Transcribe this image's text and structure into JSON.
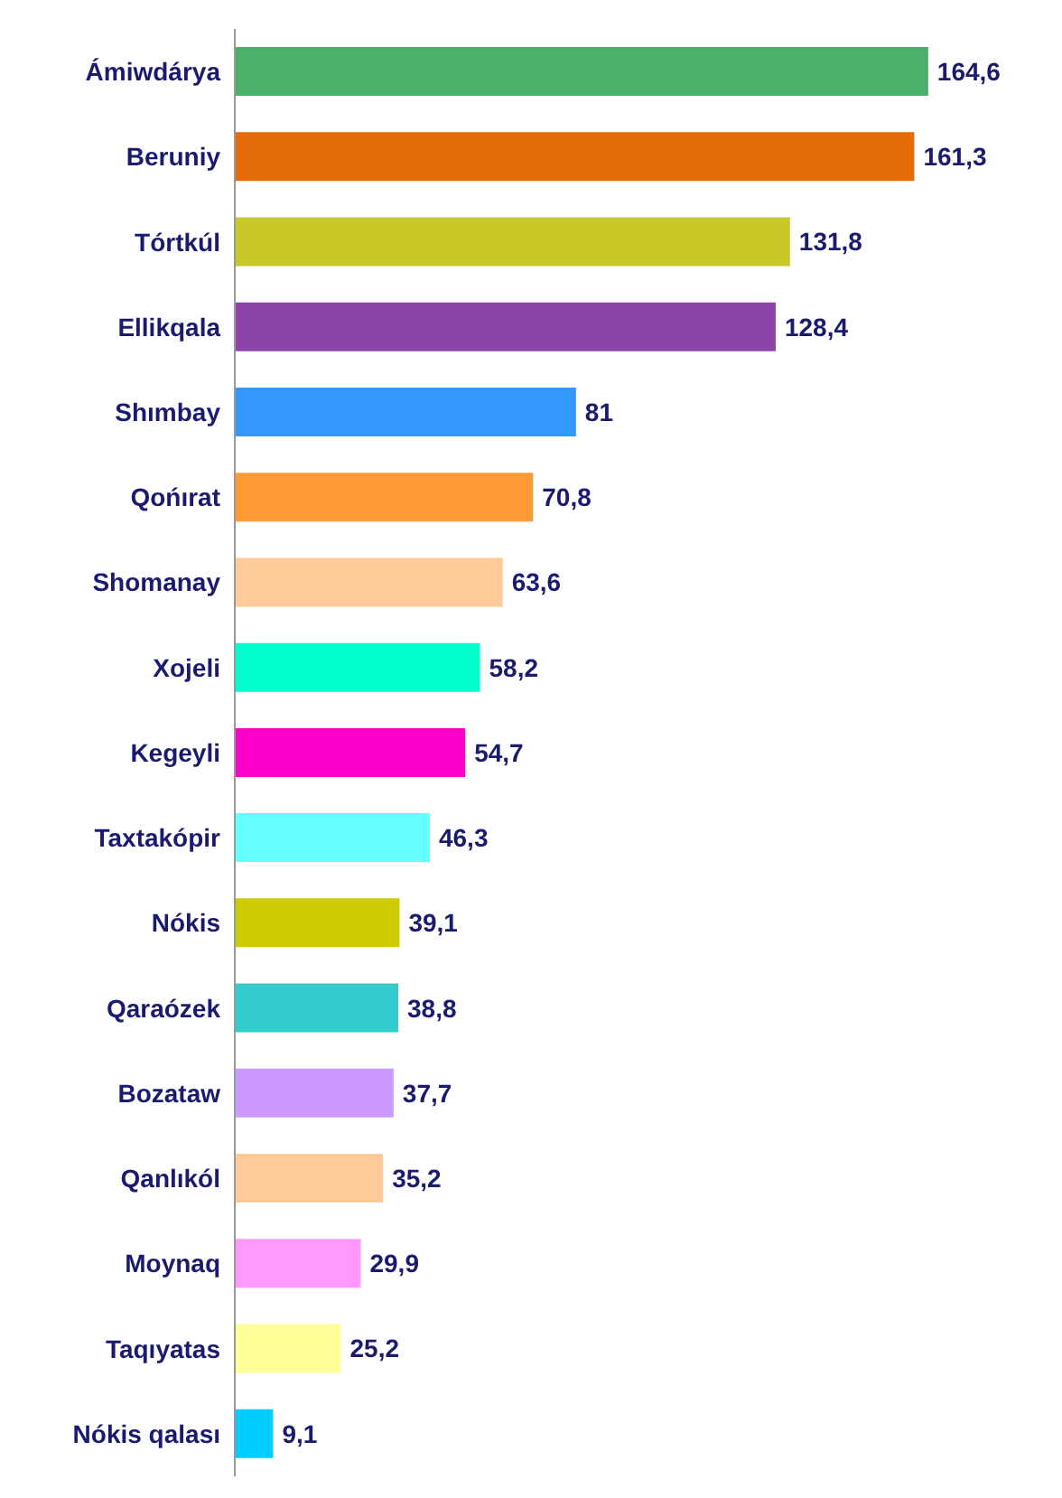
{
  "chart_data": {
    "type": "bar",
    "orientation": "horizontal",
    "value_labels": [
      "164,6",
      "161,3",
      "131,8",
      "128,4",
      "81",
      "70,8",
      "63,6",
      "58,2",
      "54,7",
      "46,3",
      "39,1",
      "38,8",
      "37,7",
      "35,2",
      "29,9",
      "25,2",
      "9,1"
    ],
    "grid": false,
    "legend": false,
    "categories": [
      "Ámiwdárya",
      "Beruniy",
      "Tórtkúl",
      "Ellikqala",
      "Shımbay",
      "Qońırat",
      "Shomanay",
      "Xojeli",
      "Kegeyli",
      "Taxtakópir",
      "Nókis",
      "Qaraózek",
      "Bozataw",
      "Qanlıkól",
      "Moynaq",
      "Taqıyatas",
      "Nókis qalası"
    ],
    "values": [
      164.6,
      161.3,
      131.8,
      128.4,
      81,
      70.8,
      63.6,
      58.2,
      54.7,
      46.3,
      39.1,
      38.8,
      37.7,
      35.2,
      29.9,
      25.2,
      9.1
    ],
    "colors": [
      "#4caf6a",
      "#e46c0a",
      "#c8c828",
      "#8c44a8",
      "#3399ff",
      "#ff9933",
      "#ffcc99",
      "#00ffcc",
      "#ff00cc",
      "#66ffff",
      "#cccc00",
      "#33cccc",
      "#cc99ff",
      "#ffcc99",
      "#ff99ff",
      "#ffff99",
      "#00ccff"
    ]
  }
}
